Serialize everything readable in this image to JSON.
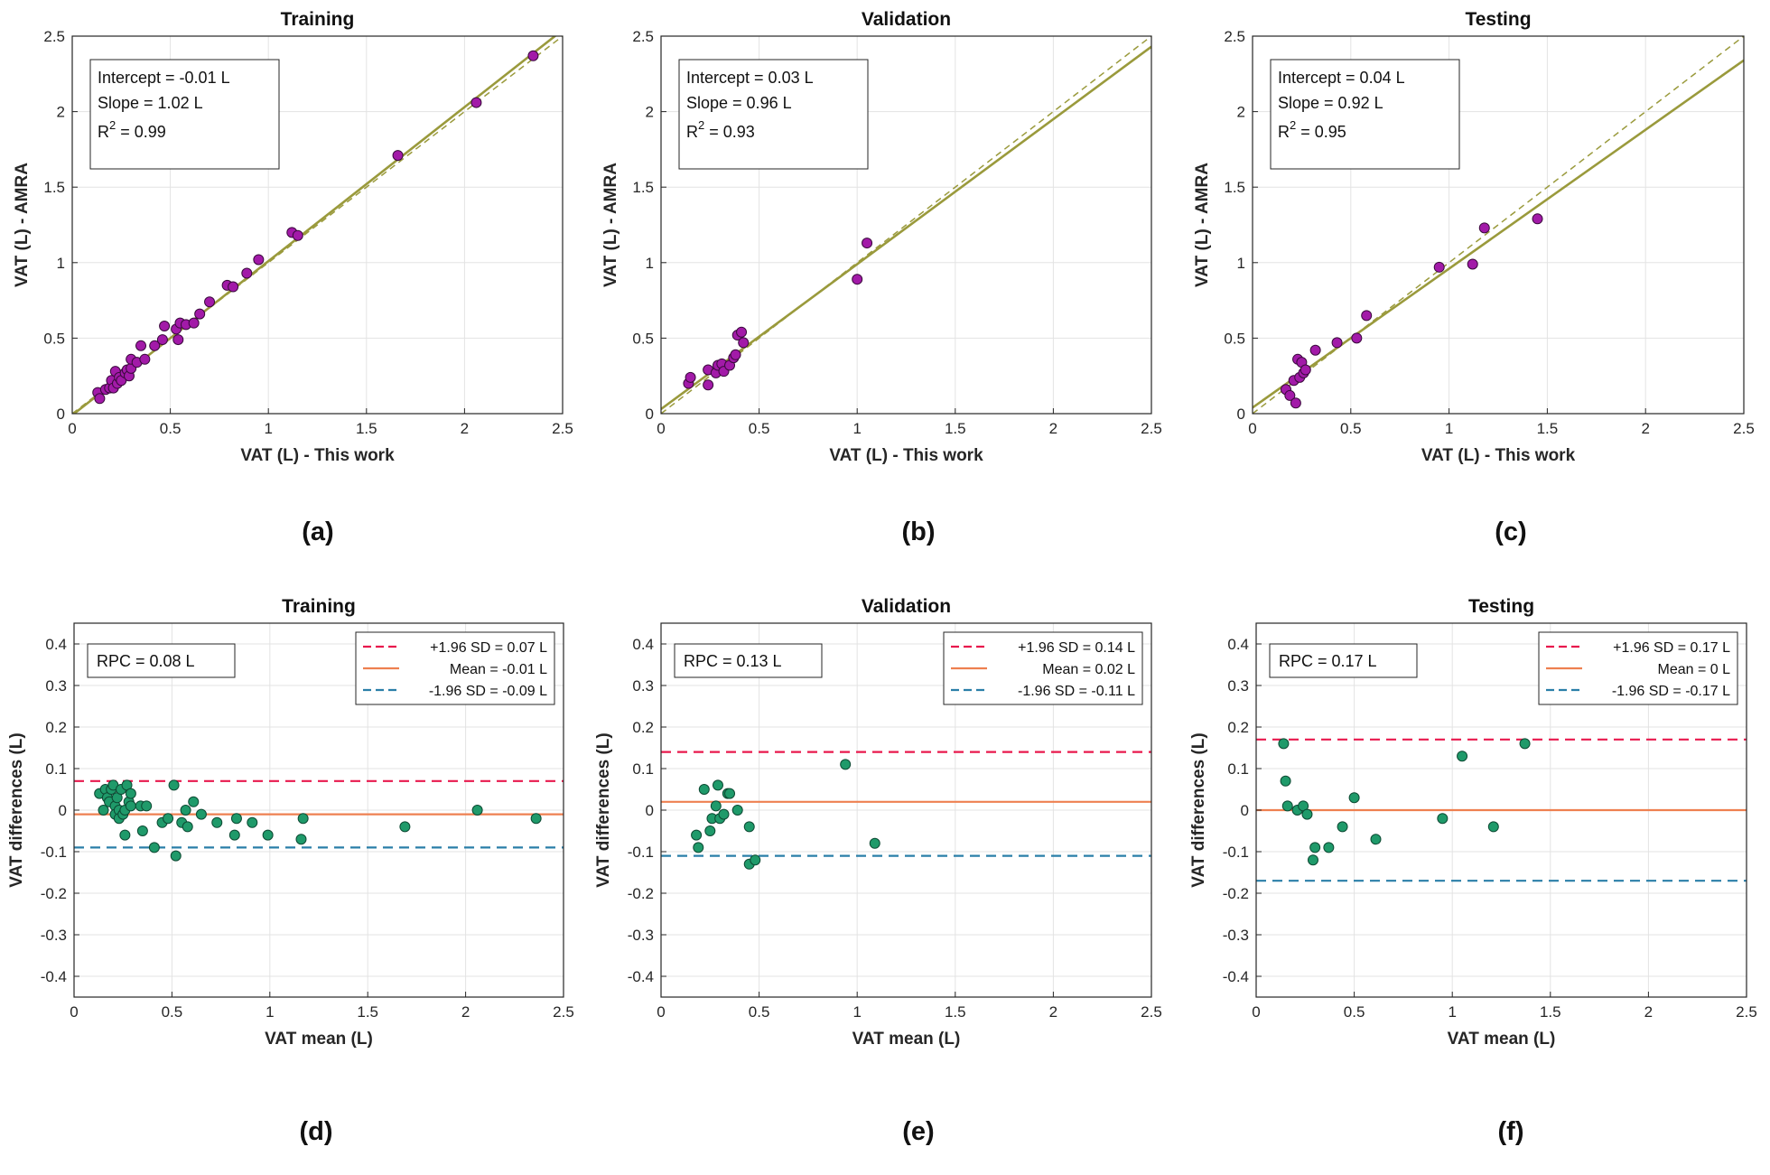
{
  "figure": {
    "panel_letters": [
      "(a)",
      "(b)",
      "(c)",
      "(d)",
      "(e)",
      "(f)"
    ]
  },
  "colors": {
    "fit_line": "#9a9a3c",
    "scatter_fill": "#a21aa8",
    "bland_fill": "#1f9a6a",
    "upper_loa": "#e8194d",
    "mean_line": "#ee8050",
    "lower_loa": "#2a7fa8",
    "grid": "#e3e3e3",
    "axis": "#262626"
  },
  "chart_data": [
    {
      "id": "a",
      "type": "scatter",
      "title": "Training",
      "xlabel": "VAT (L) - This work",
      "ylabel": "VAT (L) - AMRA",
      "xlim": [
        0,
        2.5
      ],
      "ylim": [
        0,
        2.5
      ],
      "xticks": [
        0,
        0.5,
        1,
        1.5,
        2,
        2.5
      ],
      "yticks": [
        0,
        0.5,
        1,
        1.5,
        2,
        2.5
      ],
      "xticklabels": [
        "0",
        "0.5",
        "1",
        "1.5",
        "2",
        "2.5"
      ],
      "yticklabels": [
        "0",
        "0.5",
        "1",
        "1.5",
        "2",
        "2.5"
      ],
      "fit": {
        "intercept": -0.01,
        "slope": 1.02
      },
      "annotation": {
        "intercept_text": "Intercept = -0.01 L",
        "slope_text": "Slope = 1.02 L",
        "r2_text": "R",
        "r2_sup": "2",
        "r2_value": " = 0.99"
      },
      "points": [
        [
          0.13,
          0.14
        ],
        [
          0.14,
          0.1
        ],
        [
          0.17,
          0.16
        ],
        [
          0.19,
          0.17
        ],
        [
          0.2,
          0.22
        ],
        [
          0.21,
          0.17
        ],
        [
          0.22,
          0.28
        ],
        [
          0.23,
          0.2
        ],
        [
          0.24,
          0.24
        ],
        [
          0.25,
          0.22
        ],
        [
          0.27,
          0.27
        ],
        [
          0.28,
          0.29
        ],
        [
          0.29,
          0.25
        ],
        [
          0.3,
          0.3
        ],
        [
          0.3,
          0.36
        ],
        [
          0.33,
          0.34
        ],
        [
          0.35,
          0.45
        ],
        [
          0.37,
          0.36
        ],
        [
          0.42,
          0.45
        ],
        [
          0.46,
          0.49
        ],
        [
          0.47,
          0.58
        ],
        [
          0.53,
          0.56
        ],
        [
          0.54,
          0.49
        ],
        [
          0.55,
          0.6
        ],
        [
          0.58,
          0.59
        ],
        [
          0.62,
          0.6
        ],
        [
          0.65,
          0.66
        ],
        [
          0.7,
          0.74
        ],
        [
          0.79,
          0.85
        ],
        [
          0.82,
          0.84
        ],
        [
          0.89,
          0.93
        ],
        [
          0.95,
          1.02
        ],
        [
          1.12,
          1.2
        ],
        [
          1.15,
          1.18
        ],
        [
          1.66,
          1.71
        ],
        [
          2.06,
          2.06
        ],
        [
          2.35,
          2.37
        ]
      ]
    },
    {
      "id": "b",
      "type": "scatter",
      "title": "Validation",
      "xlabel": "VAT (L) - This work",
      "ylabel": "VAT (L) - AMRA",
      "xlim": [
        0,
        2.5
      ],
      "ylim": [
        0,
        2.5
      ],
      "xticks": [
        0,
        0.5,
        1,
        1.5,
        2,
        2.5
      ],
      "yticks": [
        0,
        0.5,
        1,
        1.5,
        2,
        2.5
      ],
      "xticklabels": [
        "0",
        "0.5",
        "1",
        "1.5",
        "2",
        "2.5"
      ],
      "yticklabels": [
        "0",
        "0.5",
        "1",
        "1.5",
        "2",
        "2.5"
      ],
      "fit": {
        "intercept": 0.03,
        "slope": 0.96
      },
      "annotation": {
        "intercept_text": "Intercept = 0.03 L",
        "slope_text": "Slope = 0.96 L",
        "r2_text": "R",
        "r2_sup": "2",
        "r2_value": " = 0.93"
      },
      "points": [
        [
          0.14,
          0.2
        ],
        [
          0.15,
          0.24
        ],
        [
          0.24,
          0.29
        ],
        [
          0.24,
          0.19
        ],
        [
          0.28,
          0.27
        ],
        [
          0.29,
          0.32
        ],
        [
          0.31,
          0.33
        ],
        [
          0.32,
          0.28
        ],
        [
          0.35,
          0.32
        ],
        [
          0.37,
          0.37
        ],
        [
          0.38,
          0.39
        ],
        [
          0.39,
          0.52
        ],
        [
          0.41,
          0.54
        ],
        [
          0.42,
          0.47
        ],
        [
          1.0,
          0.89
        ],
        [
          1.05,
          1.13
        ]
      ]
    },
    {
      "id": "c",
      "type": "scatter",
      "title": "Testing",
      "xlabel": "VAT (L) - This work",
      "ylabel": "VAT (L) - AMRA",
      "xlim": [
        0,
        2.5
      ],
      "ylim": [
        0,
        2.5
      ],
      "xticks": [
        0,
        0.5,
        1,
        1.5,
        2,
        2.5
      ],
      "yticks": [
        0,
        0.5,
        1,
        1.5,
        2,
        2.5
      ],
      "xticklabels": [
        "0",
        "0.5",
        "1",
        "1.5",
        "2",
        "2.5"
      ],
      "yticklabels": [
        "0",
        "0.5",
        "1",
        "1.5",
        "2",
        "2.5"
      ],
      "fit": {
        "intercept": 0.04,
        "slope": 0.92
      },
      "annotation": {
        "intercept_text": "Intercept = 0.04 L",
        "slope_text": "Slope = 0.92 L",
        "r2_text": "R",
        "r2_sup": "2",
        "r2_value": " = 0.95"
      },
      "points": [
        [
          0.17,
          0.16
        ],
        [
          0.19,
          0.12
        ],
        [
          0.21,
          0.22
        ],
        [
          0.22,
          0.07
        ],
        [
          0.23,
          0.36
        ],
        [
          0.24,
          0.24
        ],
        [
          0.25,
          0.34
        ],
        [
          0.26,
          0.27
        ],
        [
          0.27,
          0.29
        ],
        [
          0.32,
          0.42
        ],
        [
          0.43,
          0.47
        ],
        [
          0.53,
          0.5
        ],
        [
          0.58,
          0.65
        ],
        [
          0.95,
          0.97
        ],
        [
          1.12,
          0.99
        ],
        [
          1.18,
          1.23
        ],
        [
          1.45,
          1.29
        ]
      ]
    },
    {
      "id": "d",
      "type": "scatter",
      "title": "Training",
      "xlabel": "VAT mean (L)",
      "ylabel": "VAT differences (L)",
      "xlim": [
        0,
        2.5
      ],
      "ylim": [
        -0.45,
        0.45
      ],
      "xticks": [
        0,
        0.5,
        1,
        1.5,
        2,
        2.5
      ],
      "yticks": [
        -0.4,
        -0.3,
        -0.2,
        -0.1,
        0,
        0.1,
        0.2,
        0.3,
        0.4
      ],
      "xticklabels": [
        "0",
        "0.5",
        "1",
        "1.5",
        "2",
        "2.5"
      ],
      "yticklabels": [
        "-0.4",
        "-0.3",
        "-0.2",
        "-0.1",
        "0",
        "0.1",
        "0.2",
        "0.3",
        "0.4"
      ],
      "rpc_text": "RPC = 0.08 L",
      "upper": 0.07,
      "mean": -0.01,
      "lower": -0.09,
      "legend": [
        "+1.96 SD = 0.07 L",
        "Mean = -0.01 L",
        "-1.96 SD = -0.09 L"
      ],
      "points": [
        [
          0.13,
          0.04
        ],
        [
          0.15,
          0.0
        ],
        [
          0.16,
          0.05
        ],
        [
          0.17,
          0.03
        ],
        [
          0.18,
          0.02
        ],
        [
          0.19,
          0.05
        ],
        [
          0.2,
          0.06
        ],
        [
          0.21,
          0.01
        ],
        [
          0.21,
          -0.01
        ],
        [
          0.22,
          0.03
        ],
        [
          0.23,
          0.0
        ],
        [
          0.23,
          -0.02
        ],
        [
          0.24,
          0.05
        ],
        [
          0.25,
          -0.01
        ],
        [
          0.26,
          0.0
        ],
        [
          0.26,
          -0.06
        ],
        [
          0.27,
          0.06
        ],
        [
          0.28,
          0.02
        ],
        [
          0.29,
          0.01
        ],
        [
          0.29,
          0.04
        ],
        [
          0.34,
          0.01
        ],
        [
          0.35,
          -0.05
        ],
        [
          0.37,
          0.01
        ],
        [
          0.41,
          -0.09
        ],
        [
          0.45,
          -0.03
        ],
        [
          0.48,
          -0.02
        ],
        [
          0.51,
          0.06
        ],
        [
          0.52,
          -0.11
        ],
        [
          0.55,
          -0.03
        ],
        [
          0.57,
          0.0
        ],
        [
          0.58,
          -0.04
        ],
        [
          0.61,
          0.02
        ],
        [
          0.65,
          -0.01
        ],
        [
          0.73,
          -0.03
        ],
        [
          0.82,
          -0.06
        ],
        [
          0.83,
          -0.02
        ],
        [
          0.91,
          -0.03
        ],
        [
          0.99,
          -0.06
        ],
        [
          1.16,
          -0.07
        ],
        [
          1.17,
          -0.02
        ],
        [
          1.69,
          -0.04
        ],
        [
          2.06,
          0.0
        ],
        [
          2.36,
          -0.02
        ]
      ]
    },
    {
      "id": "e",
      "type": "scatter",
      "title": "Validation",
      "xlabel": "VAT mean (L)",
      "ylabel": "VAT differences (L)",
      "xlim": [
        0,
        2.5
      ],
      "ylim": [
        -0.45,
        0.45
      ],
      "xticks": [
        0,
        0.5,
        1,
        1.5,
        2,
        2.5
      ],
      "yticks": [
        -0.4,
        -0.3,
        -0.2,
        -0.1,
        0,
        0.1,
        0.2,
        0.3,
        0.4
      ],
      "xticklabels": [
        "0",
        "0.5",
        "1",
        "1.5",
        "2",
        "2.5"
      ],
      "yticklabels": [
        "-0.4",
        "-0.3",
        "-0.2",
        "-0.1",
        "0",
        "0.1",
        "0.2",
        "0.3",
        "0.4"
      ],
      "rpc_text": "RPC = 0.13 L",
      "upper": 0.14,
      "mean": 0.02,
      "lower": -0.11,
      "legend": [
        "+1.96 SD = 0.14 L",
        "Mean = 0.02 L",
        "-1.96 SD = -0.11 L"
      ],
      "points": [
        [
          0.18,
          -0.06
        ],
        [
          0.19,
          -0.09
        ],
        [
          0.22,
          0.05
        ],
        [
          0.25,
          -0.05
        ],
        [
          0.26,
          -0.02
        ],
        [
          0.28,
          0.01
        ],
        [
          0.29,
          0.06
        ],
        [
          0.3,
          -0.02
        ],
        [
          0.32,
          -0.01
        ],
        [
          0.34,
          0.04
        ],
        [
          0.35,
          0.04
        ],
        [
          0.39,
          0.0
        ],
        [
          0.45,
          -0.04
        ],
        [
          0.45,
          -0.13
        ],
        [
          0.48,
          -0.12
        ],
        [
          0.94,
          0.11
        ],
        [
          1.09,
          -0.08
        ]
      ]
    },
    {
      "id": "f",
      "type": "scatter",
      "title": "Testing",
      "xlabel": "VAT mean (L)",
      "ylabel": "VAT differences (L)",
      "xlim": [
        0,
        2.5
      ],
      "ylim": [
        -0.45,
        0.45
      ],
      "xticks": [
        0,
        0.5,
        1,
        1.5,
        2,
        2.5
      ],
      "yticks": [
        -0.4,
        -0.3,
        -0.2,
        -0.1,
        0,
        0.1,
        0.2,
        0.3,
        0.4
      ],
      "xticklabels": [
        "0",
        "0.5",
        "1",
        "1.5",
        "2",
        "2.5"
      ],
      "yticklabels": [
        "-0.4",
        "-0.3",
        "-0.2",
        "-0.1",
        "0",
        "0.1",
        "0.2",
        "0.3",
        "0.4"
      ],
      "rpc_text": "RPC = 0.17 L",
      "upper": 0.17,
      "mean": 0,
      "lower": -0.17,
      "legend": [
        "+1.96 SD = 0.17 L",
        "Mean = 0 L",
        "-1.96 SD = -0.17 L"
      ],
      "points": [
        [
          0.14,
          0.16
        ],
        [
          0.15,
          0.07
        ],
        [
          0.16,
          0.01
        ],
        [
          0.21,
          0.0
        ],
        [
          0.24,
          0.01
        ],
        [
          0.26,
          -0.01
        ],
        [
          0.29,
          -0.12
        ],
        [
          0.3,
          -0.09
        ],
        [
          0.37,
          -0.09
        ],
        [
          0.44,
          -0.04
        ],
        [
          0.5,
          0.03
        ],
        [
          0.61,
          -0.07
        ],
        [
          0.95,
          -0.02
        ],
        [
          1.05,
          0.13
        ],
        [
          1.21,
          -0.04
        ],
        [
          1.37,
          0.16
        ]
      ]
    }
  ]
}
